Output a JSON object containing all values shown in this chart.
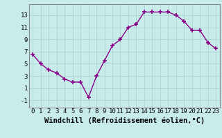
{
  "x": [
    0,
    1,
    2,
    3,
    4,
    5,
    6,
    7,
    8,
    9,
    10,
    11,
    12,
    13,
    14,
    15,
    16,
    17,
    18,
    19,
    20,
    21,
    22,
    23
  ],
  "y": [
    6.5,
    5.0,
    4.0,
    3.5,
    2.5,
    2.0,
    2.0,
    -0.5,
    3.0,
    5.5,
    8.0,
    9.0,
    11.0,
    11.5,
    13.5,
    13.5,
    13.5,
    13.5,
    13.0,
    12.0,
    10.5,
    10.5,
    8.5,
    7.5
  ],
  "line_color": "#880088",
  "marker": "+",
  "marker_size": 4,
  "marker_lw": 1.2,
  "bg_color": "#c8ecea",
  "grid_color": "#b0d8d8",
  "xlabel": "Windchill (Refroidissement éolien,°C)",
  "xlabel_fontsize": 7.5,
  "ylabel_ticks": [
    -1,
    1,
    3,
    5,
    7,
    9,
    11,
    13
  ],
  "xtick_labels": [
    "0",
    "1",
    "2",
    "3",
    "4",
    "5",
    "6",
    "7",
    "8",
    "9",
    "10",
    "11",
    "12",
    "13",
    "14",
    "15",
    "16",
    "17",
    "18",
    "19",
    "20",
    "21",
    "22",
    "23"
  ],
  "xlim": [
    -0.5,
    23.5
  ],
  "ylim": [
    -2.2,
    14.8
  ],
  "tick_fontsize": 6.5,
  "line_width": 1.0
}
